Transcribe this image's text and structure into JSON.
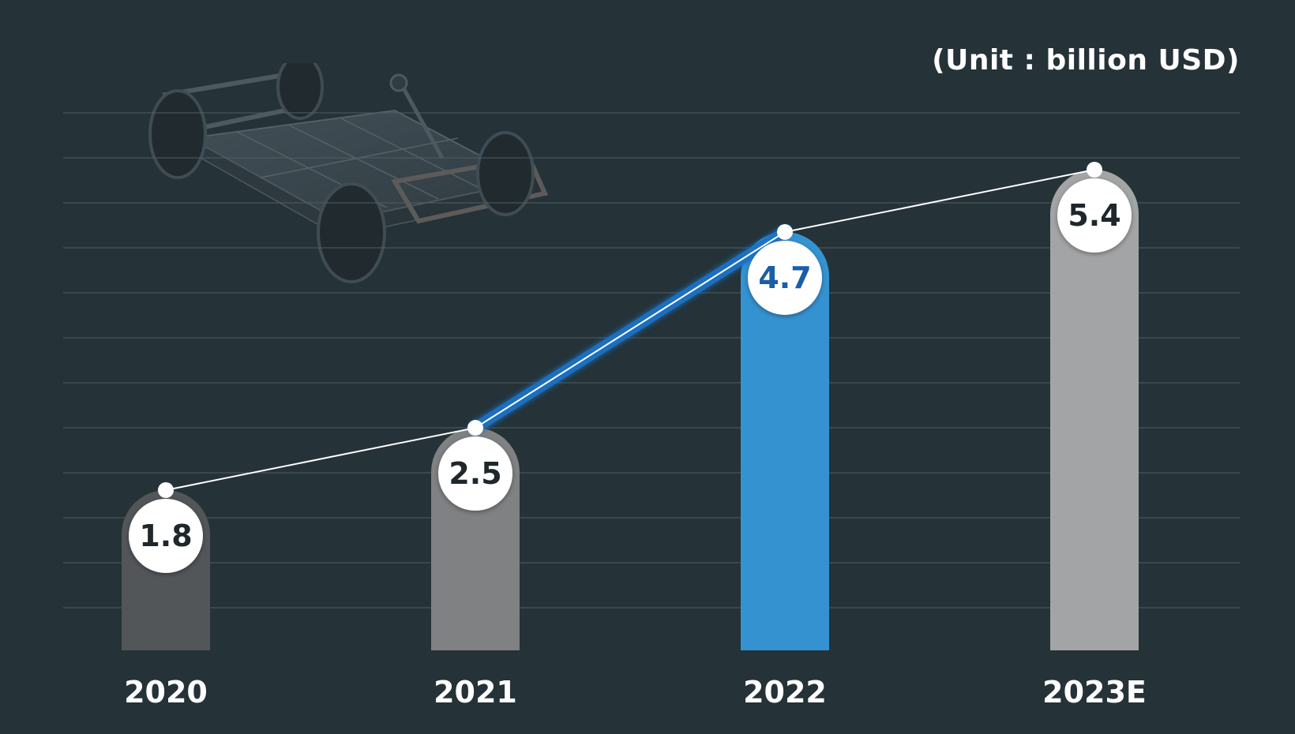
{
  "unit_label": "(Unit : billion USD)",
  "colors": {
    "background": "#253238",
    "grid": "#4f5d62",
    "highlight": "#3592d1",
    "highlight_value": "#1a5ea8",
    "value_text": "#1f272b",
    "line": "#ffffff"
  },
  "illustration": {
    "name": "ev-chassis-illustration"
  },
  "chart_data": {
    "type": "bar",
    "categories": [
      "2020",
      "2021",
      "2022",
      "2023E"
    ],
    "values": [
      1.8,
      2.5,
      4.7,
      5.4
    ],
    "value_labels": [
      "1.8",
      "2.5",
      "4.7",
      "5.4"
    ],
    "bar_colors": [
      "#525658",
      "#7f8183",
      "#3592d1",
      "#a3a4a5"
    ],
    "highlight_index": 2,
    "overlay": "line connecting bar tops",
    "ylim": [
      0,
      6
    ],
    "grid": true,
    "title": "",
    "xlabel": "",
    "ylabel": ""
  }
}
